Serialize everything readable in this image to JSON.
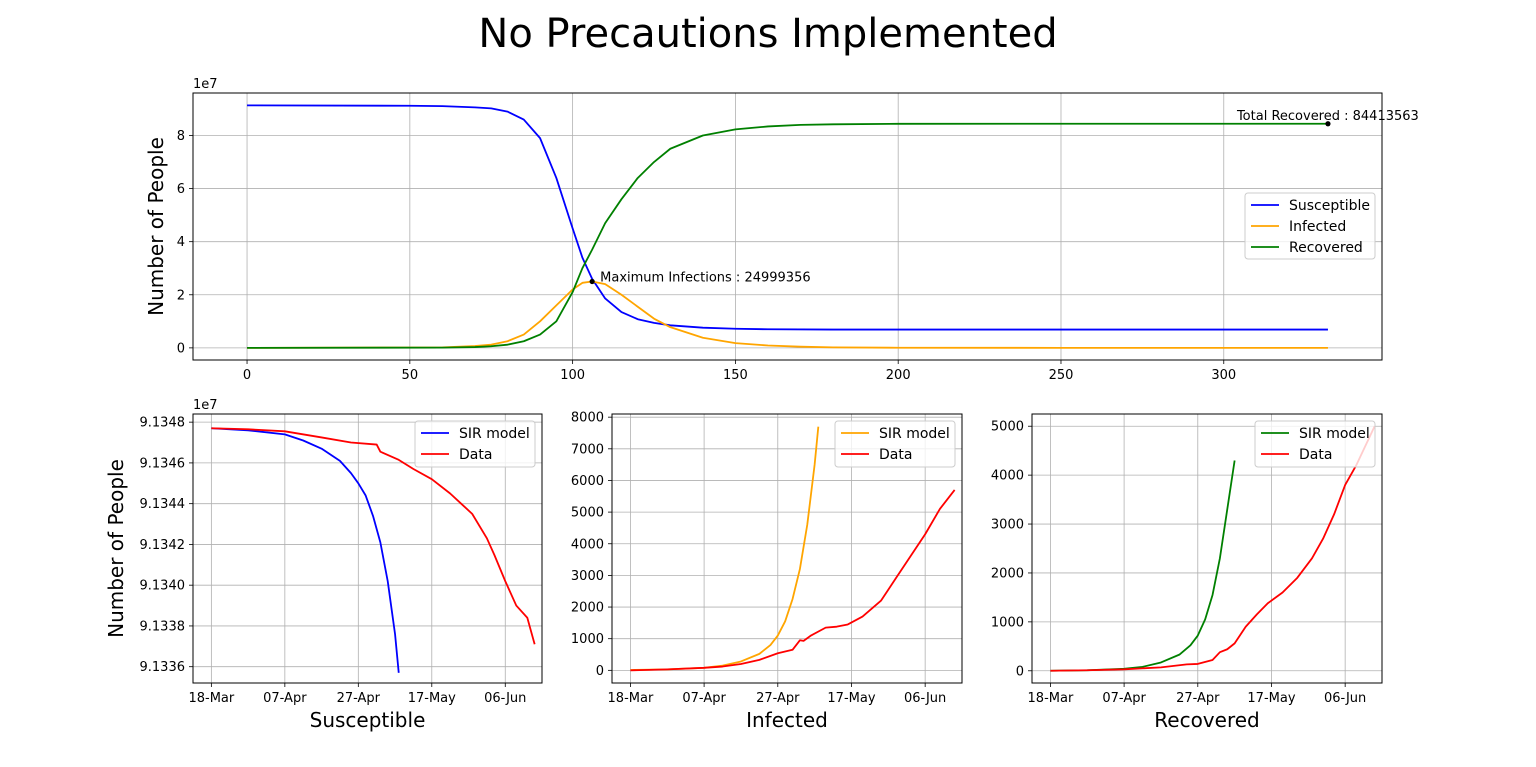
{
  "figure": {
    "title": "No Precautions Implemented"
  },
  "chart_data": [
    {
      "id": "main",
      "type": "line",
      "title": "",
      "xlabel": "",
      "ylabel": "Number of People",
      "xlim": [
        -16.6,
        348.6
      ],
      "ylim": [
        -4570000,
        96000000
      ],
      "offset_text": "1e7",
      "grid": true,
      "legend_position": "center-right",
      "x_ticks": [
        0,
        50,
        100,
        150,
        200,
        250,
        300
      ],
      "x_tick_labels": [
        "0",
        "50",
        "100",
        "150",
        "200",
        "250",
        "300"
      ],
      "y_ticks": [
        0,
        20000000,
        40000000,
        60000000,
        80000000
      ],
      "y_tick_labels": [
        "0",
        "2",
        "4",
        "6",
        "8"
      ],
      "series": [
        {
          "name": "Susceptible",
          "color": "#0000ff",
          "x": [
            0,
            50,
            60,
            70,
            75,
            80,
            85,
            90,
            95,
            100,
            103,
            106,
            110,
            115,
            120,
            125,
            130,
            140,
            150,
            160,
            180,
            200,
            250,
            300,
            332
          ],
          "y": [
            91348000,
            91200000,
            91050000,
            90600000,
            90200000,
            89000000,
            86000000,
            79000000,
            64000000,
            45000000,
            34000000,
            26000000,
            18600000,
            13500000,
            10800000,
            9400000,
            8500000,
            7600000,
            7200000,
            7000000,
            6900000,
            6900000,
            6900000,
            6900000,
            6900000
          ]
        },
        {
          "name": "Infected",
          "color": "#ffa500",
          "x": [
            0,
            60,
            70,
            75,
            80,
            85,
            90,
            95,
            100,
            103,
            106,
            110,
            115,
            120,
            125,
            130,
            140,
            150,
            160,
            170,
            180,
            200,
            250,
            300,
            332
          ],
          "y": [
            0,
            200000,
            700000,
            1200000,
            2500000,
            5000000,
            10000000,
            16000000,
            22000000,
            24500000,
            24999356,
            24000000,
            20000000,
            15500000,
            11000000,
            7800000,
            3800000,
            1800000,
            900000,
            450000,
            200000,
            50000,
            0,
            0,
            0
          ]
        },
        {
          "name": "Recovered",
          "color": "#008000",
          "x": [
            0,
            60,
            70,
            75,
            80,
            85,
            90,
            95,
            100,
            103,
            106,
            110,
            115,
            120,
            125,
            130,
            140,
            150,
            160,
            170,
            180,
            200,
            250,
            300,
            332
          ],
          "y": [
            0,
            100000,
            300000,
            600000,
            1200000,
            2500000,
            5000000,
            10000000,
            21000000,
            30000000,
            37000000,
            47000000,
            56000000,
            64000000,
            70000000,
            75000000,
            80000000,
            82300000,
            83400000,
            84000000,
            84200000,
            84400000,
            84413000,
            84413563,
            84413563
          ]
        }
      ],
      "annotations": [
        {
          "text": "Maximum Infections : 24999356",
          "x": 106,
          "y": 24999356
        },
        {
          "text": "Total Recovered : 84413563",
          "x": 332,
          "y": 84413563
        }
      ]
    },
    {
      "id": "susceptible",
      "type": "line",
      "title": "",
      "xlabel": "Susceptible",
      "ylabel": "Number of People",
      "xlim": [
        "2020-03-13",
        "2020-06-16"
      ],
      "ylim": [
        91335200,
        91348400
      ],
      "offset_text": "1e7",
      "grid": true,
      "legend_position": "upper right",
      "x_ticks": [
        "2020-03-18",
        "2020-04-07",
        "2020-04-27",
        "2020-05-17",
        "2020-06-06"
      ],
      "x_tick_labels": [
        "18-Mar",
        "07-Apr",
        "27-Apr",
        "17-May",
        "06-Jun"
      ],
      "y_ticks": [
        91336000,
        91338000,
        91340000,
        91342000,
        91344000,
        91346000,
        91348000
      ],
      "y_tick_labels": [
        "9.1336",
        "9.1338",
        "9.1340",
        "9.1342",
        "9.1344",
        "9.1346",
        "9.1348"
      ],
      "series": [
        {
          "name": "SIR model",
          "color": "#0000ff",
          "x": [
            "2020-03-18",
            "2020-03-28",
            "2020-04-07",
            "2020-04-12",
            "2020-04-17",
            "2020-04-22",
            "2020-04-25",
            "2020-04-27",
            "2020-04-29",
            "2020-05-01",
            "2020-05-03",
            "2020-05-05",
            "2020-05-07",
            "2020-05-08"
          ],
          "x_days": [
            0,
            10,
            20,
            25,
            30,
            35,
            38,
            40,
            42,
            44,
            46,
            48,
            50,
            51
          ],
          "y": [
            91347700,
            91347600,
            91347400,
            91347100,
            91346700,
            91346100,
            91345500,
            91345000,
            91344400,
            91343400,
            91342100,
            91340200,
            91337600,
            91335700
          ]
        },
        {
          "name": "Data",
          "color": "#ff0000",
          "x": [
            "2020-03-18",
            "2020-03-28",
            "2020-04-07",
            "2020-04-17",
            "2020-04-25",
            "2020-05-02",
            "2020-05-03",
            "2020-05-08",
            "2020-05-12",
            "2020-05-17",
            "2020-05-22",
            "2020-05-25",
            "2020-05-28",
            "2020-06-01",
            "2020-06-03",
            "2020-06-06",
            "2020-06-09",
            "2020-06-12",
            "2020-06-14"
          ],
          "y": [
            91347700,
            91347650,
            91347550,
            91347250,
            91347000,
            91346900,
            91346550,
            91346150,
            91345700,
            91345200,
            91344500,
            91344000,
            91343500,
            91342300,
            91341500,
            91340200,
            91339000,
            91338400,
            91337100
          ]
        }
      ]
    },
    {
      "id": "infected",
      "type": "line",
      "title": "",
      "xlabel": "Infected",
      "ylabel": "",
      "xlim": [
        "2020-03-13",
        "2020-06-16"
      ],
      "ylim": [
        -400,
        8100
      ],
      "offset_text": "",
      "grid": true,
      "legend_position": "upper right",
      "x_ticks": [
        "2020-03-18",
        "2020-04-07",
        "2020-04-27",
        "2020-05-17",
        "2020-06-06"
      ],
      "x_tick_labels": [
        "18-Mar",
        "07-Apr",
        "27-Apr",
        "17-May",
        "06-Jun"
      ],
      "y_ticks": [
        0,
        1000,
        2000,
        3000,
        4000,
        5000,
        6000,
        7000,
        8000
      ],
      "y_tick_labels": [
        "0",
        "1000",
        "2000",
        "3000",
        "4000",
        "5000",
        "6000",
        "7000",
        "8000"
      ],
      "series": [
        {
          "name": "SIR model",
          "color": "#ffa500",
          "x": [
            "2020-03-18",
            "2020-03-28",
            "2020-04-07",
            "2020-04-12",
            "2020-04-17",
            "2020-04-22",
            "2020-04-25",
            "2020-04-27",
            "2020-04-29",
            "2020-05-01",
            "2020-05-03",
            "2020-05-05",
            "2020-05-07",
            "2020-05-08"
          ],
          "y": [
            10,
            30,
            80,
            150,
            280,
            520,
            800,
            1100,
            1550,
            2250,
            3200,
            4600,
            6500,
            7700
          ]
        },
        {
          "name": "Data",
          "color": "#ff0000",
          "x": [
            "2020-03-18",
            "2020-03-28",
            "2020-04-07",
            "2020-04-12",
            "2020-04-17",
            "2020-04-22",
            "2020-04-27",
            "2020-05-01",
            "2020-05-03",
            "2020-05-04",
            "2020-05-06",
            "2020-05-10",
            "2020-05-13",
            "2020-05-16",
            "2020-05-20",
            "2020-05-25",
            "2020-05-29",
            "2020-06-02",
            "2020-06-06",
            "2020-06-10",
            "2020-06-14"
          ],
          "y": [
            0,
            30,
            80,
            120,
            200,
            330,
            540,
            650,
            950,
            930,
            1100,
            1350,
            1380,
            1450,
            1700,
            2200,
            2900,
            3600,
            4300,
            5100,
            5700
          ]
        }
      ]
    },
    {
      "id": "recovered",
      "type": "line",
      "title": "",
      "xlabel": "Recovered",
      "ylabel": "",
      "xlim": [
        "2020-03-13",
        "2020-06-16"
      ],
      "ylim": [
        -250,
        5250
      ],
      "offset_text": "",
      "grid": true,
      "legend_position": "upper right",
      "x_ticks": [
        "2020-03-18",
        "2020-04-07",
        "2020-04-27",
        "2020-05-17",
        "2020-06-06"
      ],
      "x_tick_labels": [
        "18-Mar",
        "07-Apr",
        "27-Apr",
        "17-May",
        "06-Jun"
      ],
      "y_ticks": [
        0,
        1000,
        2000,
        3000,
        4000,
        5000
      ],
      "y_tick_labels": [
        "0",
        "1000",
        "2000",
        "3000",
        "4000",
        "5000"
      ],
      "series": [
        {
          "name": "SIR model",
          "color": "#008000",
          "x": [
            "2020-03-18",
            "2020-03-28",
            "2020-04-07",
            "2020-04-12",
            "2020-04-17",
            "2020-04-22",
            "2020-04-25",
            "2020-04-27",
            "2020-04-29",
            "2020-05-01",
            "2020-05-03",
            "2020-05-05",
            "2020-05-07"
          ],
          "y": [
            0,
            10,
            40,
            80,
            170,
            330,
            520,
            720,
            1050,
            1550,
            2300,
            3300,
            4300
          ]
        },
        {
          "name": "Data",
          "color": "#ff0000",
          "x": [
            "2020-03-18",
            "2020-03-28",
            "2020-04-07",
            "2020-04-17",
            "2020-04-24",
            "2020-04-27",
            "2020-05-01",
            "2020-05-03",
            "2020-05-05",
            "2020-05-07",
            "2020-05-10",
            "2020-05-13",
            "2020-05-16",
            "2020-05-20",
            "2020-05-24",
            "2020-05-28",
            "2020-05-31",
            "2020-06-03",
            "2020-06-06",
            "2020-06-09",
            "2020-06-14"
          ],
          "y": [
            0,
            10,
            30,
            70,
            130,
            140,
            220,
            380,
            440,
            560,
            900,
            1150,
            1380,
            1600,
            1900,
            2300,
            2700,
            3200,
            3800,
            4200,
            5000
          ]
        }
      ]
    }
  ]
}
